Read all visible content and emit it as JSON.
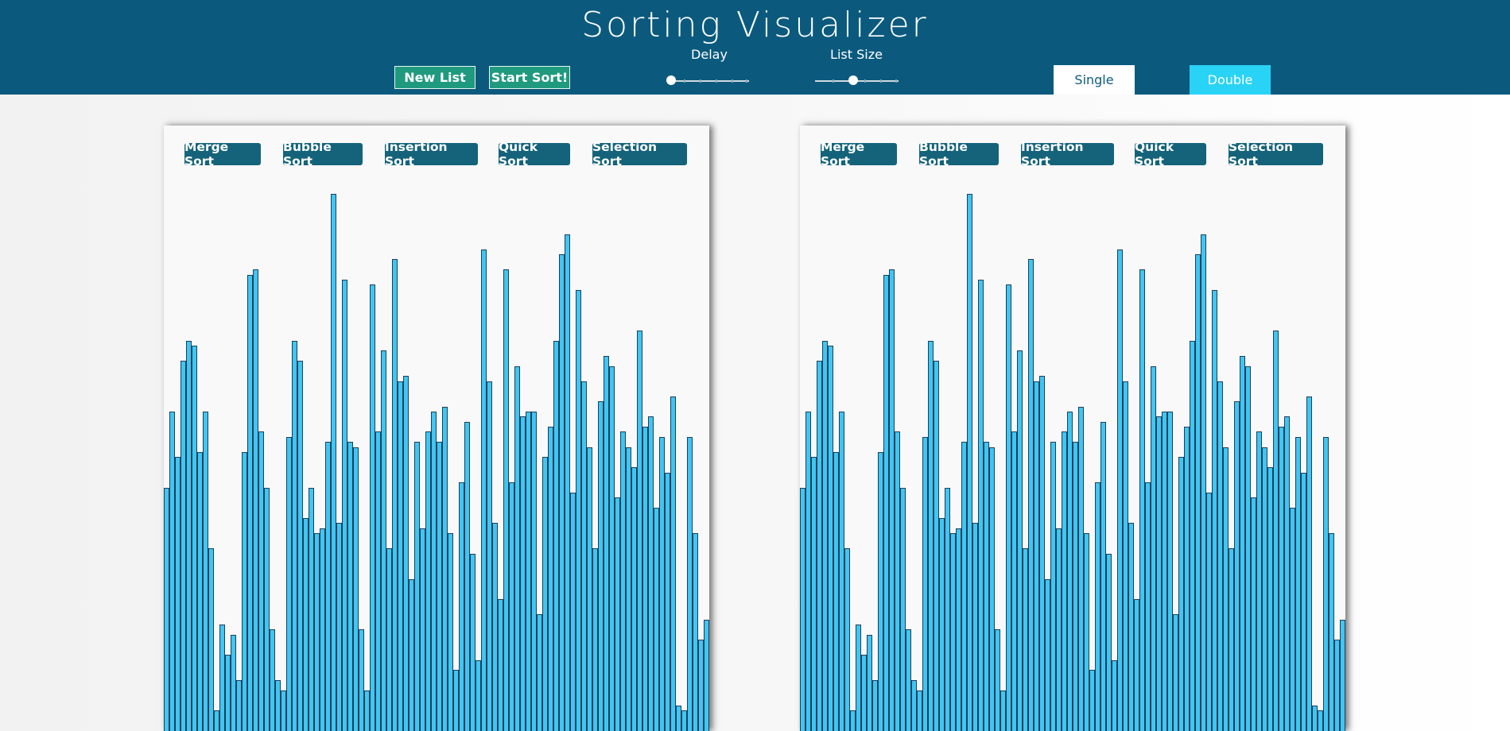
{
  "header": {
    "title": "Sorting Visualizer",
    "new_list_label": "New List",
    "start_sort_label": "Start Sort!",
    "delay_label": "Delay",
    "list_size_label": "List Size",
    "delay_value": 0,
    "list_size_value": 0.45,
    "mode_single_label": "Single",
    "mode_double_label": "Double",
    "active_mode": "Double"
  },
  "algorithms": [
    "Merge Sort",
    "Bubble Sort",
    "Insertion Sort",
    "Quick Sort",
    "Selection Sort"
  ],
  "colors": {
    "header_bg": "#0b5a7e",
    "green_button": "#1f9a7f",
    "algo_button": "#14637a",
    "bar_fill": "#3fc6f2",
    "bar_border": "#1e3f5a",
    "mode_active": "#29d3f5",
    "mode_inactive": "#ffffff"
  },
  "bar_values": [
    48,
    63,
    54,
    73,
    77,
    76,
    55,
    63,
    36,
    4,
    21,
    15,
    19,
    10,
    55,
    90,
    91,
    59,
    48,
    20,
    10,
    8,
    58,
    77,
    73,
    42,
    48,
    39,
    40,
    57,
    106,
    41,
    89,
    57,
    56,
    20,
    8,
    88,
    59,
    75,
    36,
    93,
    69,
    70,
    30,
    57,
    40,
    59,
    63,
    57,
    64,
    39,
    12,
    49,
    61,
    35,
    14,
    95,
    69,
    41,
    26,
    91,
    49,
    72,
    62,
    63,
    63,
    23,
    54,
    60,
    77,
    94,
    98,
    47,
    87,
    69,
    56,
    36,
    65,
    74,
    72,
    46,
    59,
    56,
    52,
    79,
    60,
    62,
    44,
    58,
    51,
    66,
    5,
    4,
    58,
    39,
    18,
    22
  ]
}
